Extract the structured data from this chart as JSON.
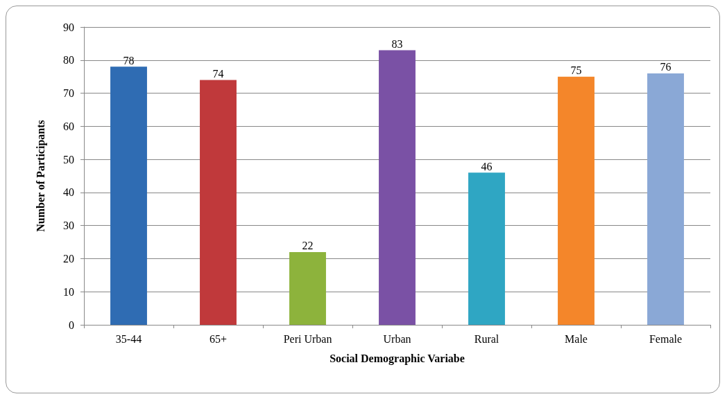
{
  "chart_data": {
    "type": "bar",
    "xlabel": "Social Demographic Variabe",
    "ylabel": "Number of Participants",
    "categories": [
      "35-44",
      "65+",
      "Peri Urban",
      "Urban",
      "Rural",
      "Male",
      "Female"
    ],
    "values": [
      78,
      74,
      22,
      83,
      46,
      75,
      76
    ],
    "colors": [
      "#2f6cb3",
      "#c0393b",
      "#8db33c",
      "#7a51a5",
      "#2fa6c3",
      "#f4862a",
      "#8aa8d6"
    ],
    "ylim": [
      0,
      90
    ],
    "yticks": [
      0,
      10,
      20,
      30,
      40,
      50,
      60,
      70,
      80,
      90
    ],
    "grid": "y",
    "data_labels": true
  }
}
